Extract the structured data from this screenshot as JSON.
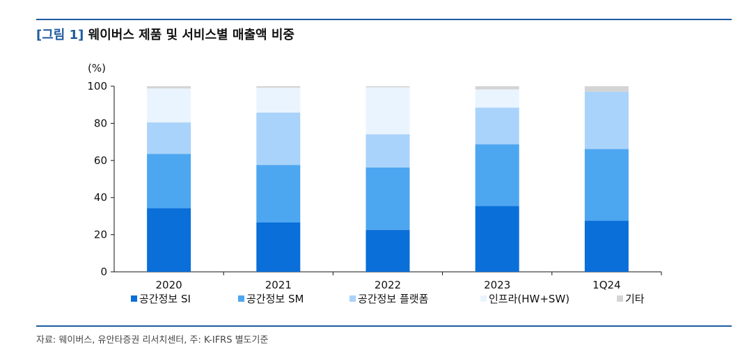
{
  "header": {
    "tag": "[그림 1]",
    "title": "웨이버스 제품 및 서비스별 매출액 비중"
  },
  "footer": {
    "source": "자료: 웨이버스, 유안타증권 리서치센터, 주: K-IFRS 별도기준"
  },
  "chart_data": {
    "type": "bar",
    "stacked": true,
    "title": "웨이버스 제품 및 서비스별 매출액 비중",
    "unit": "(%)",
    "xlabel": "",
    "ylabel": "(%)",
    "ylim": [
      0,
      100
    ],
    "yticks": [
      0,
      20,
      40,
      60,
      80,
      100
    ],
    "categories": [
      "2020",
      "2021",
      "2022",
      "2023",
      "1Q24"
    ],
    "series": [
      {
        "name": "공간정보 SI",
        "color": "#0a6fd8",
        "values": [
          34.3,
          26.6,
          22.6,
          35.4,
          27.6
        ]
      },
      {
        "name": "공간정보 SM",
        "color": "#4da6f0",
        "values": [
          29.2,
          31.0,
          33.6,
          33.3,
          38.6
        ]
      },
      {
        "name": "공간정보 플랫폼",
        "color": "#a9d3fa",
        "values": [
          17.0,
          28.2,
          17.9,
          19.8,
          30.9
        ]
      },
      {
        "name": "인프라(HW+SW)",
        "color": "#e9f4fe",
        "values": [
          18.3,
          13.4,
          25.3,
          9.8,
          0.0
        ]
      },
      {
        "name": "기타",
        "color": "#d4d4d4",
        "values": [
          1.2,
          0.8,
          0.6,
          1.7,
          2.9
        ]
      }
    ],
    "legend_position": "bottom",
    "grid": false
  }
}
